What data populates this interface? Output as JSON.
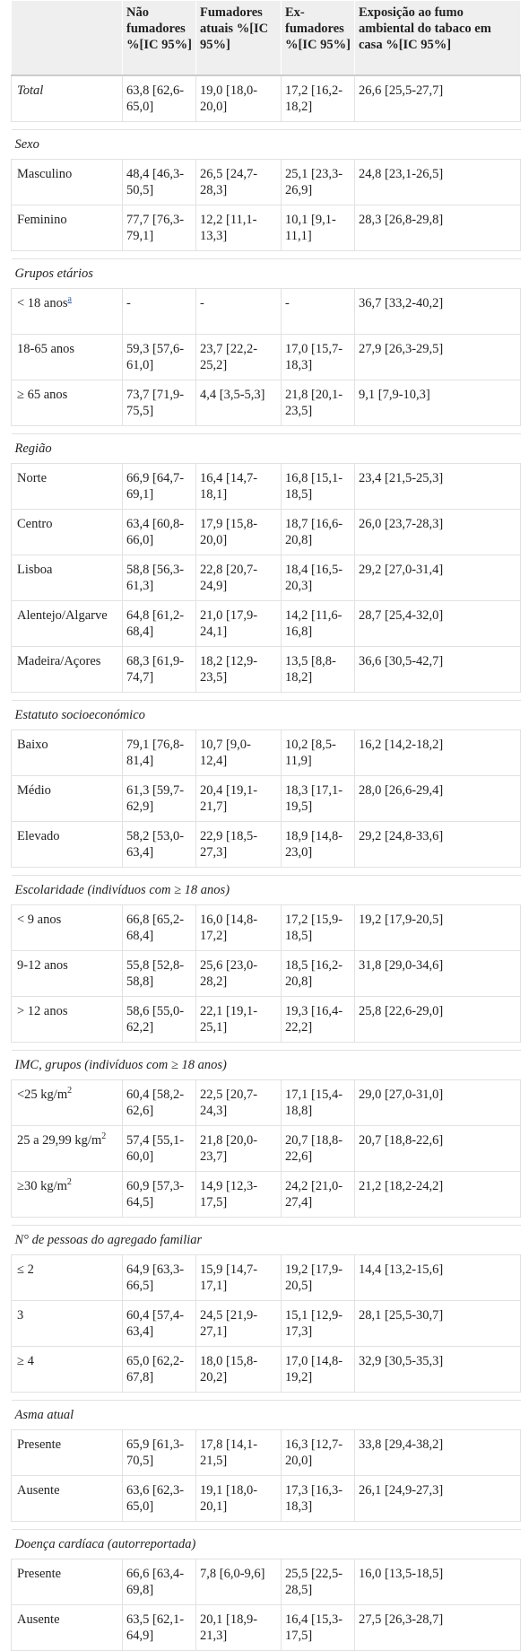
{
  "table": {
    "header": [
      "Não fumadores %[IC 95%]",
      "Fumadores atuais %[IC 95%]",
      "Ex-fumadores %[IC 95%]",
      "Exposição ao fumo ambiental do tabaco em casa %[IC 95%]"
    ],
    "total": {
      "label": "Total",
      "values": [
        "63,8 [62,6-65,0]",
        "19,0 [18,0-20,0]",
        "17,2 [16,2-18,2]",
        "26,6 [25,5-27,7]"
      ]
    },
    "sections": [
      {
        "title": "Sexo",
        "rows": [
          {
            "label": "Masculino",
            "values": [
              "48,4 [46,3-50,5]",
              "26,5 [24,7-28,3]",
              "25,1 [23,3-26,9]",
              "24,8 [23,1-26,5]"
            ]
          },
          {
            "label": "Feminino",
            "values": [
              "77,7 [76,3-79,1]",
              "12,2 [11,1-13,3]",
              "10,1 [9,1-11,1]",
              "28,3 [26,8-29,8]"
            ]
          }
        ]
      },
      {
        "title": "Grupos etários",
        "rows": [
          {
            "label": "< 18 anos",
            "link": "a",
            "values": [
              "-",
              "-",
              "-",
              "36,7 [33,2-40,2]"
            ]
          },
          {
            "label": "18-65 anos",
            "values": [
              "59,3 [57,6-61,0]",
              "23,7 [22,2-25,2]",
              "17,0 [15,7-18,3]",
              "27,9 [26,3-29,5]"
            ]
          },
          {
            "label": "≥ 65 anos",
            "values": [
              "73,7 [71,9-75,5]",
              "4,4 [3,5-5,3]",
              "21,8 [20,1-23,5]",
              "9,1 [7,9-10,3]"
            ]
          }
        ]
      },
      {
        "title": "Região",
        "rows": [
          {
            "label": "Norte",
            "values": [
              "66,9 [64,7-69,1]",
              "16,4 [14,7-18,1]",
              "16,8 [15,1-18,5]",
              "23,4 [21,5-25,3]"
            ]
          },
          {
            "label": "Centro",
            "values": [
              "63,4 [60,8-66,0]",
              "17,9 [15,8-20,0]",
              "18,7 [16,6-20,8]",
              "26,0 [23,7-28,3]"
            ]
          },
          {
            "label": "Lisboa",
            "values": [
              "58,8 [56,3-61,3]",
              "22,8 [20,7-24,9]",
              "18,4 [16,5-20,3]",
              "29,2 [27,0-31,4]"
            ]
          },
          {
            "label": "Alentejo/Algarve",
            "values": [
              "64,8 [61,2-68,4]",
              "21,0 [17,9-24,1]",
              "14,2 [11,6-16,8]",
              "28,7 [25,4-32,0]"
            ]
          },
          {
            "label": "Madeira/Açores",
            "values": [
              "68,3 [61,9-74,7]",
              "18,2 [12,9-23,5]",
              "13,5 [8,8-18,2]",
              "36,6 [30,5-42,7]"
            ]
          }
        ]
      },
      {
        "title": "Estatuto socioeconómico",
        "rows": [
          {
            "label": "Baixo",
            "values": [
              "79,1 [76,8-81,4]",
              "10,7 [9,0-12,4]",
              "10,2 [8,5-11,9]",
              "16,2 [14,2-18,2]"
            ]
          },
          {
            "label": "Médio",
            "values": [
              "61,3 [59,7-62,9]",
              "20,4 [19,1-21,7]",
              "18,3 [17,1-19,5]",
              "28,0 [26,6-29,4]"
            ]
          },
          {
            "label": "Elevado",
            "values": [
              "58,2 [53,0-63,4]",
              "22,9 [18,5-27,3]",
              "18,9 [14,8-23,0]",
              "29,2 [24,8-33,6]"
            ]
          }
        ]
      },
      {
        "title": "Escolaridade (indivíduos com ≥ 18 anos)",
        "rows": [
          {
            "label": "< 9 anos",
            "values": [
              "66,8 [65,2-68,4]",
              "16,0 [14,8-17,2]",
              "17,2 [15,9-18,5]",
              "19,2 [17,9-20,5]"
            ]
          },
          {
            "label": "9-12 anos",
            "values": [
              "55,8 [52,8-58,8]",
              "25,6 [23,0-28,2]",
              "18,5 [16,2-20,8]",
              "31,8 [29,0-34,6]"
            ]
          },
          {
            "label": "> 12 anos",
            "values": [
              "58,6 [55,0-62,2]",
              "22,1 [19,1-25,1]",
              "19,3 [16,4-22,2]",
              "25,8 [22,6-29,0]"
            ]
          }
        ]
      },
      {
        "title": "IMC, grupos (indivíduos com ≥ 18 anos)",
        "rows": [
          {
            "label": "<25 kg/m",
            "sup": "2",
            "values": [
              "60,4 [58,2-62,6]",
              "22,5 [20,7-24,3]",
              "17,1 [15,4-18,8]",
              "29,0 [27,0-31,0]"
            ]
          },
          {
            "label": "25 a 29,99 kg/m",
            "sup": "2",
            "values": [
              "57,4 [55,1-60,0]",
              "21,8 [20,0-23,7]",
              "20,7 [18,8-22,6]",
              "20,7 [18,8-22,6]"
            ]
          },
          {
            "label": "≥30 kg/m",
            "sup": "2",
            "values": [
              "60,9 [57,3-64,5]",
              "14,9 [12,3-17,5]",
              "24,2 [21,0-27,4]",
              "21,2 [18,2-24,2]"
            ]
          }
        ]
      },
      {
        "title": "N° de pessoas do agregado familiar",
        "rows": [
          {
            "label": "≤ 2",
            "values": [
              "64,9 [63,3-66,5]",
              "15,9 [14,7-17,1]",
              "19,2 [17,9-20,5]",
              "14,4 [13,2-15,6]"
            ]
          },
          {
            "label": "3",
            "values": [
              "60,4 [57,4-63,4]",
              "24,5 [21,9-27,1]",
              "15,1 [12,9-17,3]",
              "28,1 [25,5-30,7]"
            ]
          },
          {
            "label": "≥ 4",
            "values": [
              "65,0 [62,2-67,8]",
              "18,0 [15,8-20,2]",
              "17,0 [14,8-19,2]",
              "32,9 [30,5-35,3]"
            ]
          }
        ]
      },
      {
        "title": "Asma atual",
        "rows": [
          {
            "label": "Presente",
            "values": [
              "65,9 [61,3-70,5]",
              "17,8 [14,1-21,5]",
              "16,3 [12,7-20,0]",
              "33,8 [29,4-38,2]"
            ]
          },
          {
            "label": "Ausente",
            "values": [
              "63,6 [62,3-65,0]",
              "19,1 [18,0-20,1]",
              "17,3 [16,3-18,3]",
              "26,1 [24,9-27,3]"
            ]
          }
        ]
      },
      {
        "title": "Doença cardíaca (autorreportada)",
        "rows": [
          {
            "label": "Presente",
            "values": [
              "66,6 [63,4-69,8]",
              "7,8 [6,0-9,6]",
              "25,5 [22,5-28,5]",
              "16,0 [13,5-18,5]"
            ]
          },
          {
            "label": "Ausente",
            "values": [
              "63,5 [62,1-64,9]",
              "20,1 [18,9-21,3]",
              "16,4 [15,3-17,5]",
              "27,5 [26,3-28,7]"
            ]
          }
        ]
      }
    ]
  }
}
